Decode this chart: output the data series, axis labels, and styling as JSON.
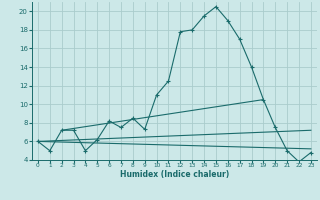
{
  "xlabel": "Humidex (Indice chaleur)",
  "bg_color": "#cce8e8",
  "grid_color": "#aacccc",
  "line_color": "#1a6b6b",
  "xlim": [
    -0.5,
    23.5
  ],
  "ylim": [
    4,
    21
  ],
  "xticks": [
    0,
    1,
    2,
    3,
    4,
    5,
    6,
    7,
    8,
    9,
    10,
    11,
    12,
    13,
    14,
    15,
    16,
    17,
    18,
    19,
    20,
    21,
    22,
    23
  ],
  "yticks": [
    4,
    6,
    8,
    10,
    12,
    14,
    16,
    18,
    20
  ],
  "series1": [
    [
      0,
      6
    ],
    [
      1,
      5
    ],
    [
      2,
      7.2
    ],
    [
      3,
      7.2
    ],
    [
      4,
      5
    ],
    [
      5,
      6.2
    ],
    [
      6,
      8.2
    ],
    [
      7,
      7.5
    ],
    [
      8,
      8.5
    ],
    [
      9,
      7.3
    ],
    [
      10,
      11
    ],
    [
      11,
      12.5
    ],
    [
      12,
      17.8
    ],
    [
      13,
      18
    ],
    [
      14,
      19.5
    ],
    [
      15,
      20.5
    ],
    [
      16,
      19
    ],
    [
      17,
      17
    ],
    [
      18,
      14
    ],
    [
      19,
      10.5
    ],
    [
      20,
      7.5
    ],
    [
      21,
      5
    ],
    [
      22,
      3.8
    ],
    [
      23,
      4.8
    ]
  ],
  "series2": [
    [
      0,
      6
    ],
    [
      23,
      7.2
    ]
  ],
  "series3": [
    [
      0,
      6
    ],
    [
      23,
      5.2
    ]
  ],
  "series4": [
    [
      2,
      7.2
    ],
    [
      19,
      10.5
    ]
  ]
}
